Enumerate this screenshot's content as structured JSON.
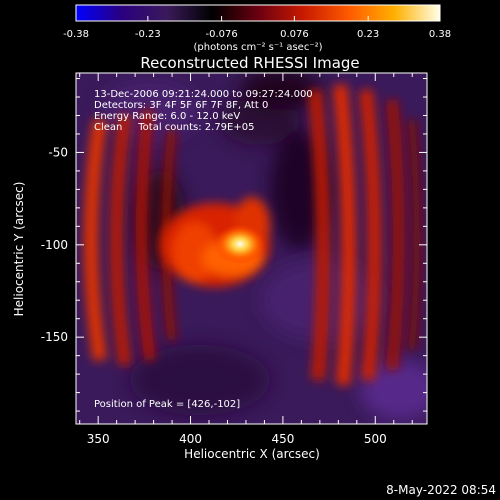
{
  "chart_data": {
    "type": "heatmap",
    "title": "Reconstructed RHESSI Image",
    "colorbar": {
      "min": -0.38,
      "max": 0.38,
      "ticks": [
        "-0.38",
        "-0.23",
        "-0.076",
        "0.076",
        "0.23",
        "0.38"
      ],
      "unit_label": "(photons cm⁻² s⁻¹ asec⁻²)",
      "colormap": [
        "#0000ff",
        "#2a007f",
        "#3a1a5a",
        "#000000",
        "#6a0010",
        "#c81a00",
        "#ff5a00",
        "#ffb000",
        "#ffffe8"
      ]
    },
    "annotations": [
      "13-Dec-2006 09:21:24.000 to 09:27:24.000",
      "Detectors: 3F 4F 5F 6F 7F 8F, Att 0",
      "Energy Range: 6.0 - 12.0 keV",
      "Clean     Total counts: 2.79E+05"
    ],
    "peak_label": "Position of Peak = [426,-102]",
    "peak": {
      "x": 426,
      "y": -102
    },
    "xlabel": "Heliocentric X (arcsec)",
    "ylabel": "Heliocentric Y (arcsec)",
    "xlim": [
      338,
      528
    ],
    "ylim": [
      -197,
      -7
    ],
    "xticks": [
      350,
      400,
      450,
      500
    ],
    "yticks": [
      -150,
      -100,
      -50
    ],
    "sources": [
      {
        "x": 352,
        "y": -100,
        "value": 0.24
      },
      {
        "x": 374,
        "y": -100,
        "value": 0.2
      },
      {
        "x": 425,
        "y": -100,
        "value": 0.38
      },
      {
        "x": 405,
        "y": -105,
        "value": 0.26
      },
      {
        "x": 500,
        "y": -100,
        "value": 0.24
      },
      {
        "x": 478,
        "y": -100,
        "value": 0.18
      }
    ],
    "timestamp": "8-May-2022 08:54"
  }
}
